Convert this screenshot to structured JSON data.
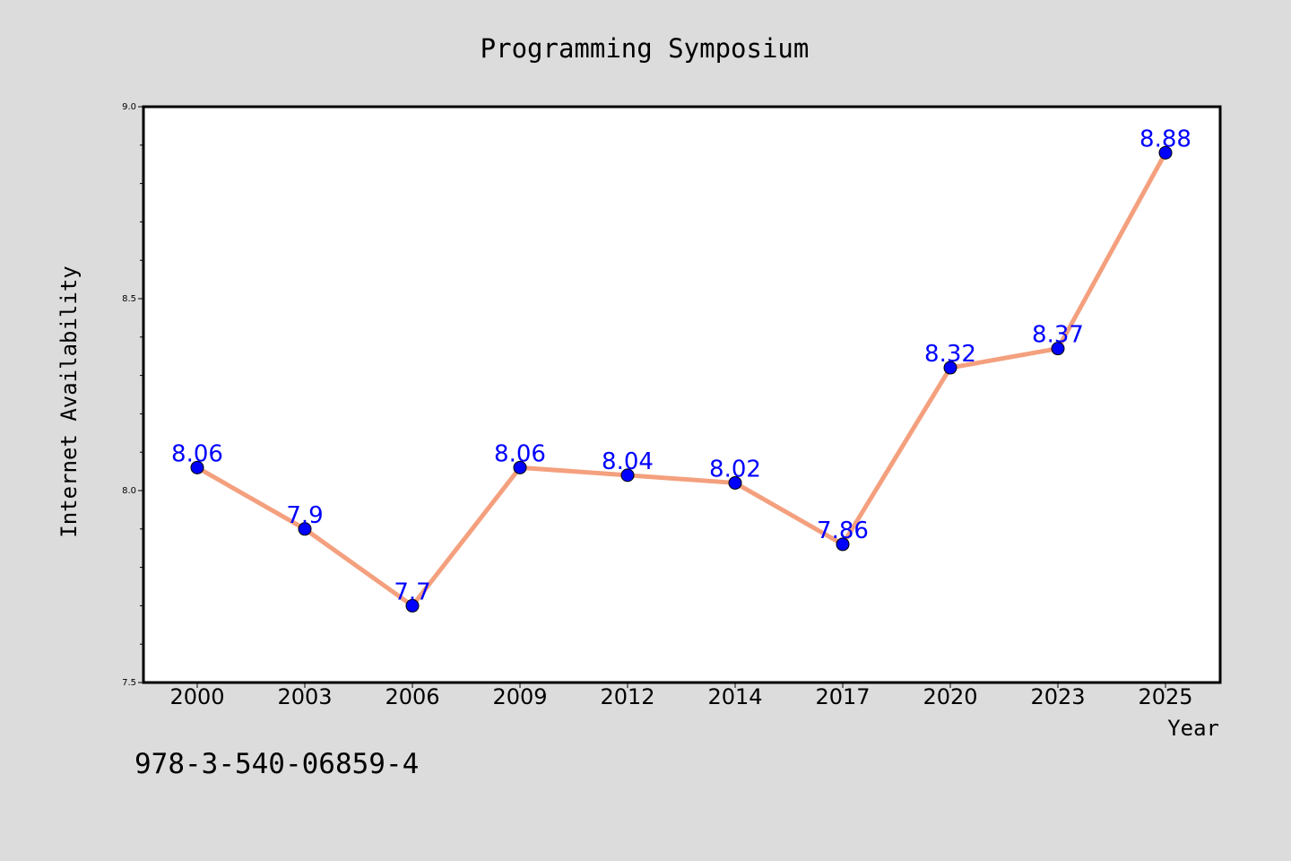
{
  "isbn": "978-3-540-06859-4",
  "colors": {
    "background": "#dcdcdc",
    "plot_background": "#ffffff",
    "line": "#f4a07e",
    "marker": "#0000ff",
    "label": "#0000ff"
  },
  "chart_data": {
    "type": "line",
    "title": "Programming Symposium",
    "xlabel": "Year",
    "ylabel": "Internet Availability",
    "categories": [
      "2000",
      "2003",
      "2006",
      "2009",
      "2012",
      "2014",
      "2017",
      "2020",
      "2023",
      "2025"
    ],
    "series": [
      {
        "values": [
          8.06,
          7.9,
          7.7,
          8.06,
          8.04,
          8.02,
          7.86,
          8.32,
          8.37,
          8.88
        ],
        "value_labels": [
          "8.06",
          "7.9",
          "7.7",
          "8.06",
          "8.04",
          "8.02",
          "7.86",
          "8.32",
          "8.37",
          "8.88"
        ]
      }
    ],
    "ylim": [
      7.5,
      9.0
    ],
    "yticks": [
      "7.5",
      "8.0",
      "8.5",
      "9.0"
    ],
    "grid": false,
    "legend": "none"
  }
}
